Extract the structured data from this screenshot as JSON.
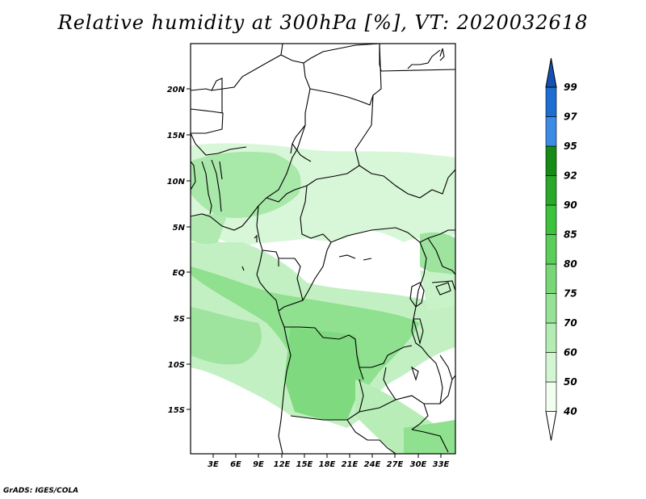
{
  "title": "Relative humidity at 300hPa [%], VT: 2020032618",
  "credit": "GrADS: IGES/COLA",
  "map": {
    "lat_ticks": [
      "20N",
      "15N",
      "10N",
      "5N",
      "EQ",
      "5S",
      "10S",
      "15S"
    ],
    "lon_ticks": [
      "3E",
      "6E",
      "9E",
      "12E",
      "15E",
      "18E",
      "21E",
      "24E",
      "27E",
      "30E",
      "33E"
    ],
    "colors": {
      "land_bg": "#ffffff",
      "coast": "#000000"
    }
  },
  "colorbar": {
    "levels": [
      "40",
      "50",
      "60",
      "70",
      "75",
      "80",
      "85",
      "90",
      "92",
      "95",
      "97",
      "99"
    ],
    "colors": [
      "#f0fff0",
      "#d2f5d2",
      "#b4ecb4",
      "#96e296",
      "#78d878",
      "#5acd5a",
      "#3cc23c",
      "#2aa82a",
      "#168c16",
      "#3c8ce6",
      "#1e6ed2",
      "#1450b4"
    ]
  }
}
